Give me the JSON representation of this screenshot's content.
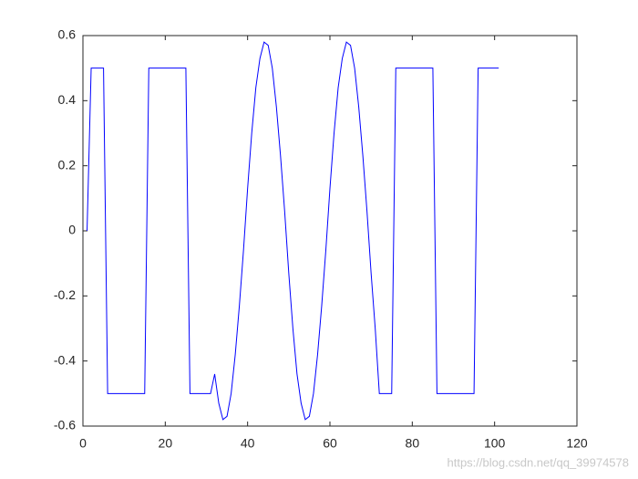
{
  "chart_data": {
    "type": "line",
    "x": [
      1,
      2,
      3,
      4,
      5,
      6,
      7,
      8,
      9,
      10,
      11,
      12,
      13,
      14,
      15,
      16,
      17,
      18,
      19,
      20,
      21,
      22,
      23,
      24,
      25,
      26,
      27,
      28,
      29,
      30,
      31,
      32,
      33,
      34,
      35,
      36,
      37,
      38,
      39,
      40,
      41,
      42,
      43,
      44,
      45,
      46,
      47,
      48,
      49,
      50,
      51,
      52,
      53,
      54,
      55,
      56,
      57,
      58,
      59,
      60,
      61,
      62,
      63,
      64,
      65,
      66,
      67,
      68,
      69,
      70,
      71,
      72,
      73,
      74,
      75,
      76,
      77,
      78,
      79,
      80,
      81,
      82,
      83,
      84,
      85,
      86,
      87,
      88,
      89,
      90,
      91,
      92,
      93,
      94,
      95,
      96,
      97,
      98,
      99,
      100,
      101
    ],
    "series": [
      {
        "color": "#0000ff",
        "values": [
          0,
          0.5,
          0.5,
          0.5,
          0.5,
          -0.5,
          -0.5,
          -0.5,
          -0.5,
          -0.5,
          -0.5,
          -0.5,
          -0.5,
          -0.5,
          -0.5,
          0.5,
          0.5,
          0.5,
          0.5,
          0.5,
          0.5,
          0.5,
          0.5,
          0.5,
          0.5,
          -0.5,
          -0.5,
          -0.5,
          -0.5,
          -0.5,
          -0.5,
          -0.44,
          -0.53,
          -0.58,
          -0.57,
          -0.5,
          -0.38,
          -0.23,
          -0.06,
          0.13,
          0.3,
          0.44,
          0.53,
          0.58,
          0.57,
          0.5,
          0.38,
          0.23,
          0.06,
          -0.13,
          -0.3,
          -0.44,
          -0.53,
          -0.58,
          -0.57,
          -0.5,
          -0.38,
          -0.23,
          -0.06,
          0.13,
          0.3,
          0.44,
          0.53,
          0.58,
          0.57,
          0.5,
          0.38,
          0.23,
          0.06,
          -0.13,
          -0.3,
          -0.5,
          -0.5,
          -0.5,
          -0.5,
          0.5,
          0.5,
          0.5,
          0.5,
          0.5,
          0.5,
          0.5,
          0.5,
          0.5,
          0.5,
          -0.5,
          -0.5,
          -0.5,
          -0.5,
          -0.5,
          -0.5,
          -0.5,
          -0.5,
          -0.5,
          -0.5,
          0.5,
          0.5,
          0.5,
          0.5,
          0.5,
          0.5
        ]
      }
    ],
    "xlim": [
      0,
      120
    ],
    "xticks": [
      0,
      20,
      40,
      60,
      80,
      100,
      120
    ],
    "ylim": [
      -0.6,
      0.6
    ],
    "yticks": [
      -0.6,
      -0.4,
      -0.2,
      0,
      0.2,
      0.4,
      0.6
    ],
    "watermark": "https://blog.csdn.net/qq_39974578"
  }
}
